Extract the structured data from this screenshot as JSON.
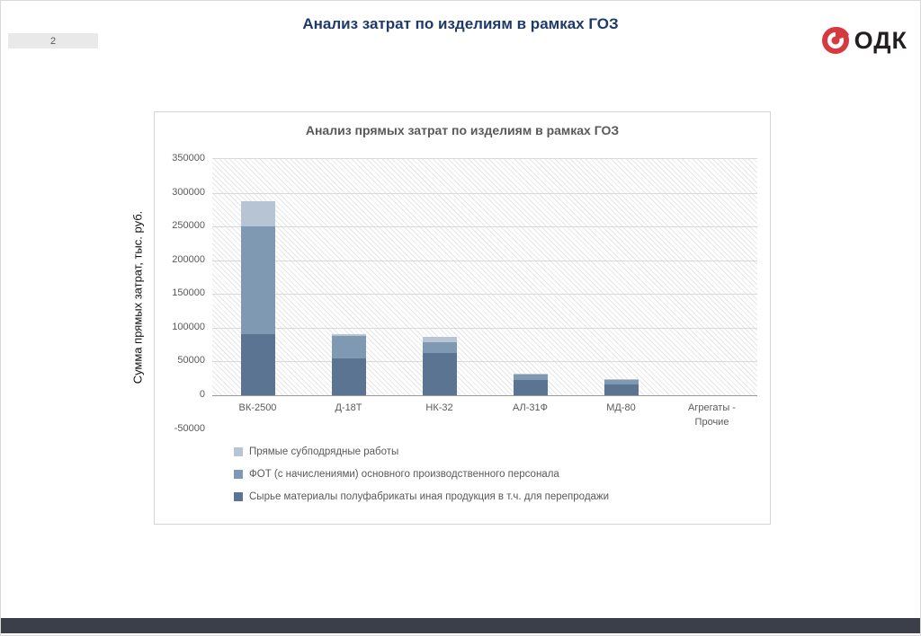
{
  "slide": {
    "page_number": "2",
    "title": "Анализ затрат по изделиям в рамках ГОЗ",
    "logo_text": "ОДК"
  },
  "colors": {
    "title_blue": "#1f3a68",
    "footer_bar": "#3b3f4a",
    "logo_red": "#d6393f",
    "series_dark": "#5b7492",
    "series_medium": "#8099b3",
    "series_light": "#b6c4d4"
  },
  "chart_data": {
    "type": "bar",
    "stacked": true,
    "title": "Анализ прямых затрат по изделиям в рамках ГОЗ",
    "ylabel": "Сумма прямых затрат, тыс. руб.",
    "ylim": [
      -50000,
      350000
    ],
    "yticks": [
      350000,
      300000,
      250000,
      200000,
      150000,
      100000,
      50000,
      0,
      -50000
    ],
    "grid": true,
    "plot_fill": "diagonal-hatch",
    "legend_position": "bottom-left",
    "categories": [
      "ВК-2500",
      "Д-18Т",
      "НК-32",
      "АЛ-31Ф",
      "МД-80",
      "Агрегаты - Прочие"
    ],
    "series": [
      {
        "name": "Сырье материалы полуфабрикаты иная продукция в т.ч. для перепродажи",
        "color": "#5b7492",
        "values": [
          90000,
          55000,
          62000,
          22000,
          16000,
          0
        ]
      },
      {
        "name": "ФОТ (с начислениями) основного производственного персонала",
        "color": "#8099b3",
        "values": [
          160000,
          33000,
          16000,
          8000,
          7000,
          0
        ]
      },
      {
        "name": "Прямые субподрядные работы",
        "color": "#b6c4d4",
        "values": [
          38000,
          2000,
          9000,
          2000,
          1000,
          0
        ]
      }
    ],
    "legend_items": [
      {
        "label": "Прямые субподрядные работы",
        "color": "#b6c4d4"
      },
      {
        "label": "ФОТ (с начислениями) основного производственного персонала",
        "color": "#8099b3"
      },
      {
        "label": "Сырье материалы полуфабрикаты иная продукция в т.ч. для перепродажи",
        "color": "#5b7492"
      }
    ]
  }
}
